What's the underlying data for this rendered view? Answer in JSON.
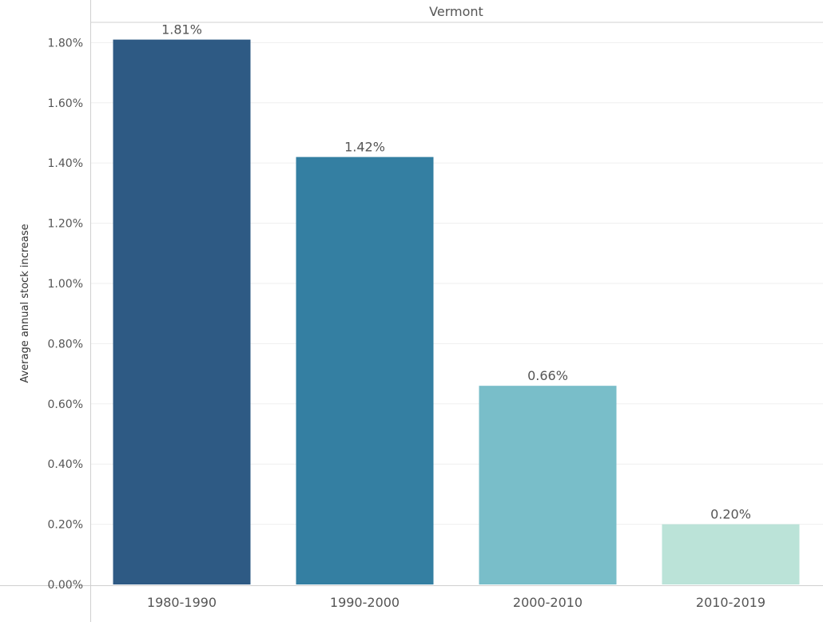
{
  "chart_data": {
    "type": "bar",
    "title": "Vermont",
    "ylabel": "Average annual stock increase",
    "xlabel": "",
    "categories": [
      "1980-1990",
      "1990-2000",
      "2000-2010",
      "2010-2019"
    ],
    "values": [
      1.81,
      1.42,
      0.66,
      0.2
    ],
    "value_labels": [
      "1.81%",
      "1.42%",
      "0.66%",
      "0.20%"
    ],
    "ylim": [
      0,
      1.8885
    ],
    "yticks": [
      0.0,
      0.2,
      0.4,
      0.6,
      0.8,
      1.0,
      1.2,
      1.4,
      1.6,
      1.8
    ],
    "ytick_labels": [
      "0.00%",
      "0.20%",
      "0.40%",
      "0.60%",
      "0.80%",
      "1.00%",
      "1.20%",
      "1.40%",
      "1.60%",
      "1.80%"
    ],
    "bar_colors": [
      "#2e5a84",
      "#347fa2",
      "#79bec9",
      "#bbe3d8"
    ],
    "grid": true,
    "legend": "none"
  }
}
